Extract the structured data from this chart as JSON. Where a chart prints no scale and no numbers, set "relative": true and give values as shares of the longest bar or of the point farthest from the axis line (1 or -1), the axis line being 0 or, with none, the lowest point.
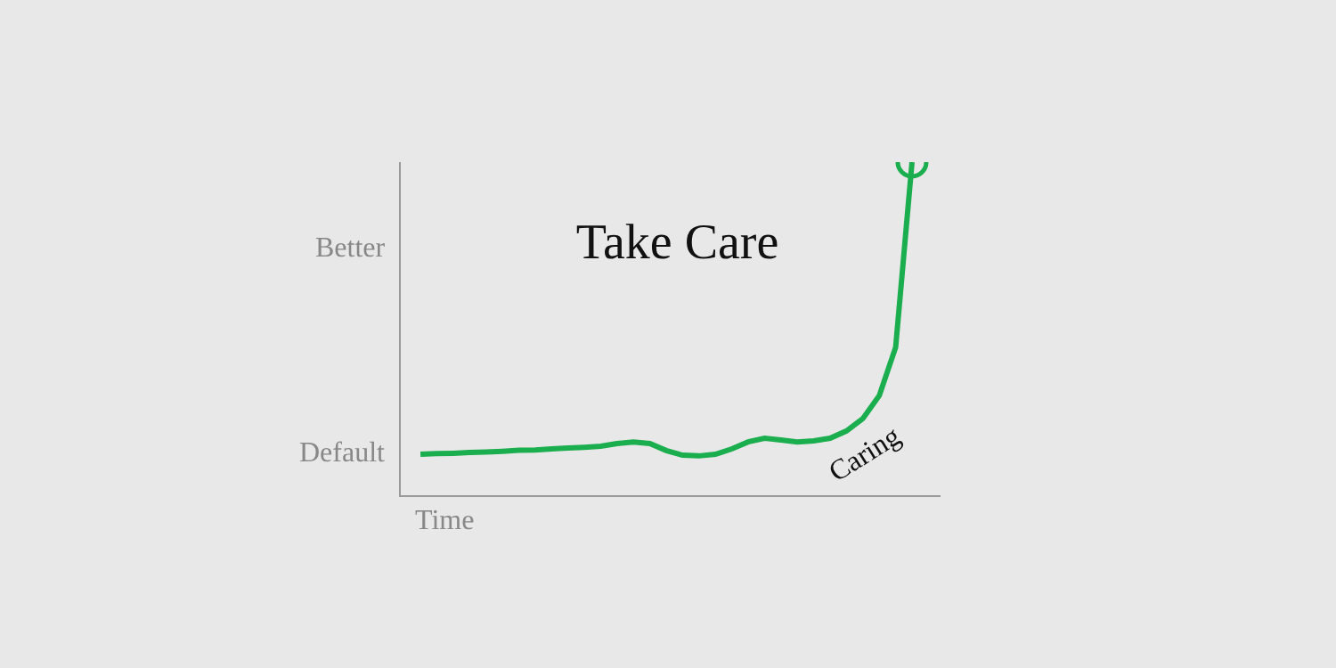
{
  "chart_data": {
    "type": "line",
    "title": "Take Care",
    "xlabel": "Time",
    "relative": true,
    "categories": [
      null,
      null,
      null,
      null,
      null,
      null,
      null,
      null,
      null,
      null,
      null,
      null,
      null,
      null,
      null,
      null,
      null,
      null,
      null,
      null,
      null,
      null,
      null,
      null,
      null,
      null,
      null,
      null,
      null,
      null,
      null
    ],
    "series": [
      {
        "color": "#1aae4e",
        "values": [
          0.123,
          0.125,
          0.126,
          0.128,
          0.13,
          0.132,
          0.135,
          0.136,
          0.139,
          0.142,
          0.144,
          0.147,
          0.155,
          0.16,
          0.155,
          0.134,
          0.12,
          0.118,
          0.123,
          0.139,
          0.16,
          0.171,
          0.166,
          0.16,
          0.163,
          0.171,
          0.193,
          0.23,
          0.299,
          0.444,
          1.0
        ]
      }
    ],
    "annotations": [
      "Default",
      "Better",
      "Caring"
    ]
  }
}
